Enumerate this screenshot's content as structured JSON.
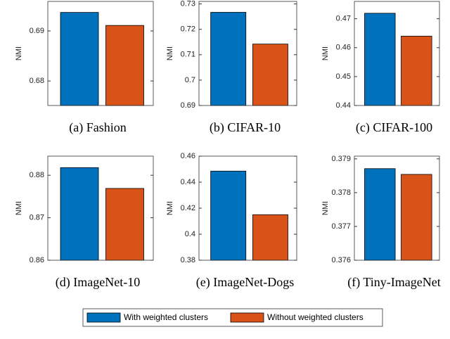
{
  "chart_data": [
    {
      "type": "bar",
      "caption": "(a)  Fashion",
      "ylabel": "NMI",
      "values": [
        0.6937,
        0.6911
      ],
      "ylim": [
        0.6751,
        0.6959
      ],
      "yticks": [
        0.68,
        0.69
      ]
    },
    {
      "type": "bar",
      "caption": "(b)  CIFAR-10",
      "ylabel": "NMI",
      "values": [
        0.7267,
        0.7142
      ],
      "ylim": [
        0.69,
        0.731
      ],
      "yticks": [
        0.69,
        0.7,
        0.71,
        0.72,
        0.73
      ]
    },
    {
      "type": "bar",
      "caption": "(c)  CIFAR-100",
      "ylabel": "NMI",
      "values": [
        0.4719,
        0.464
      ],
      "ylim": [
        0.44,
        0.476
      ],
      "yticks": [
        0.44,
        0.45,
        0.46,
        0.47
      ]
    },
    {
      "type": "bar",
      "caption": "(d)  ImageNet-10",
      "ylabel": "NMI",
      "values": [
        0.8818,
        0.8769
      ],
      "ylim": [
        0.86,
        0.8845
      ],
      "yticks": [
        0.86,
        0.87,
        0.88
      ]
    },
    {
      "type": "bar",
      "caption": "(e)  ImageNet-Dogs",
      "ylabel": "NMI",
      "values": [
        0.4485,
        0.415
      ],
      "ylim": [
        0.38,
        0.46
      ],
      "yticks": [
        0.38,
        0.4,
        0.42,
        0.44,
        0.46
      ]
    },
    {
      "type": "bar",
      "caption": "(f)  Tiny-ImageNet",
      "ylabel": "NMI",
      "values": [
        0.37871,
        0.37854
      ],
      "ylim": [
        0.376,
        0.37908
      ],
      "yticks": [
        0.376,
        0.377,
        0.378,
        0.379
      ]
    }
  ],
  "legend": {
    "entries": [
      {
        "name": "With weighted clusters",
        "color": "#0072bd"
      },
      {
        "name": "Without weighted clusters",
        "color": "#d95319"
      }
    ]
  }
}
